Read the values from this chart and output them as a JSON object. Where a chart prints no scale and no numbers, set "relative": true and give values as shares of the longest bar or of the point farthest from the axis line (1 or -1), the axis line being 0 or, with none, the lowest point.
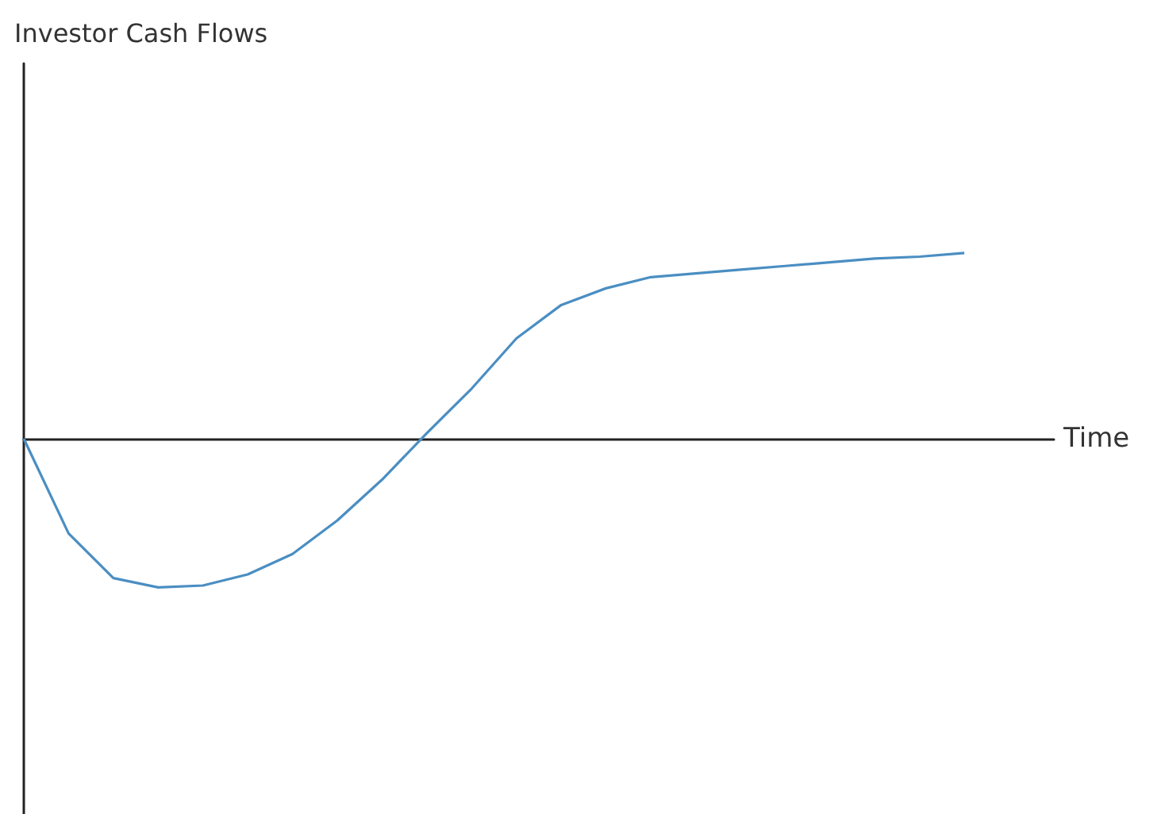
{
  "chart_data": {
    "type": "line",
    "relative": true,
    "title": "Investor Cash Flows",
    "xlabel": "Time",
    "categories": [
      null,
      null,
      null,
      null,
      null,
      null,
      null,
      null,
      null,
      null,
      null,
      null,
      null,
      null,
      null,
      null,
      null,
      null,
      null,
      null,
      null,
      null
    ],
    "series": [
      {
        "color": "#4a8ec2",
        "values": [
          0,
          -0.51,
          -0.75,
          -0.8,
          -0.79,
          -0.73,
          -0.62,
          -0.44,
          -0.22,
          0.03,
          0.27,
          0.54,
          0.72,
          0.81,
          0.87,
          0.89,
          0.91,
          0.93,
          0.95,
          0.97,
          0.98,
          1
        ]
      }
    ],
    "grid": false,
    "marker": "none",
    "line_style": "solid"
  }
}
